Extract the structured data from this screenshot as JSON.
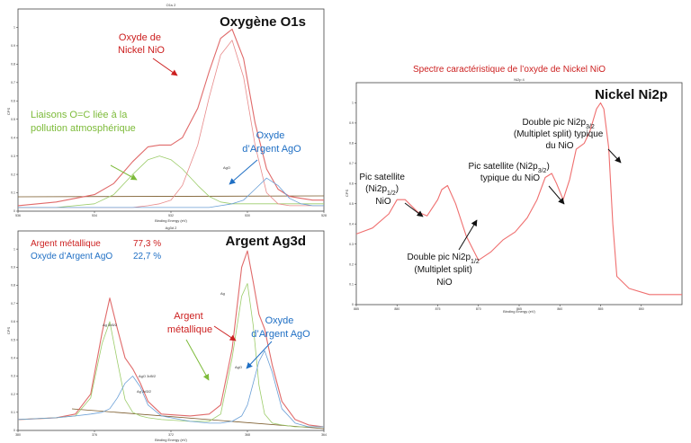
{
  "figure_subtitle": "Spectre caractéristique de l’oxyde de Nickel NiO",
  "colors": {
    "red": "#cc1f1f",
    "green": "#7dbb3a",
    "blue": "#1f6fc4",
    "dark": "#111111",
    "envelope": "#e06a6a"
  },
  "chart_data": [
    {
      "type": "line",
      "title": "Oxygène O1s",
      "small_title": "O1s 2",
      "xlabel": "Binding Energy (eV)",
      "ylabel": "CPS",
      "x_reversed": true,
      "xlim": [
        536,
        528
      ],
      "ylim": [
        0,
        1.1
      ],
      "x_ticks": [
        "536",
        "534",
        "532",
        "530",
        "528"
      ],
      "y_ticks": [
        "0",
        "0.1",
        "0.2",
        "0.3",
        "0.4",
        "0.5",
        "0.6",
        "0.7",
        "0.8",
        "0.9",
        "1"
      ],
      "series": [
        {
          "x": [
            536,
            535,
            534,
            533.5,
            533,
            532.6,
            532.3,
            532,
            531.7,
            531.3,
            531,
            530.7,
            530.4,
            530.1,
            529.8,
            529.5,
            529.2,
            528.9,
            528.6,
            528.3,
            528
          ],
          "values": [
            0.03,
            0.05,
            0.09,
            0.15,
            0.27,
            0.35,
            0.36,
            0.36,
            0.4,
            0.56,
            0.76,
            0.94,
            0.99,
            0.83,
            0.48,
            0.23,
            0.12,
            0.08,
            0.07,
            0.06,
            0.06
          ]
        },
        {
          "x": [
            536,
            535,
            534,
            533.5,
            533,
            532.6,
            532.3,
            532,
            531.7,
            531.3,
            531,
            530.7,
            530.4,
            530.1,
            529.8,
            529.5,
            529.2,
            528.9,
            528.6,
            528.3,
            528
          ],
          "values": [
            0.02,
            0.02,
            0.04,
            0.09,
            0.2,
            0.28,
            0.3,
            0.28,
            0.23,
            0.14,
            0.08,
            0.05,
            0.04,
            0.04,
            0.04,
            0.04,
            0.04,
            0.04,
            0.04,
            0.04,
            0.04
          ]
        },
        {
          "x": [
            536,
            535,
            534,
            533.5,
            533,
            532.6,
            532.3,
            532,
            531.7,
            531.3,
            531,
            530.7,
            530.4,
            530.1,
            529.8,
            529.5,
            529.2,
            528.9,
            528.6,
            528.3,
            528
          ],
          "values": [
            0.02,
            0.02,
            0.02,
            0.02,
            0.02,
            0.03,
            0.04,
            0.06,
            0.14,
            0.36,
            0.62,
            0.85,
            0.93,
            0.73,
            0.36,
            0.1,
            0.04,
            0.03,
            0.03,
            0.03,
            0.03
          ]
        },
        {
          "x": [
            536,
            535,
            534,
            533.5,
            533,
            532.6,
            532.3,
            532,
            531.7,
            531.3,
            531,
            530.7,
            530.4,
            530.1,
            529.8,
            529.5,
            529.2,
            528.9,
            528.6,
            528.3,
            528
          ],
          "values": [
            0.02,
            0.02,
            0.02,
            0.02,
            0.02,
            0.02,
            0.02,
            0.02,
            0.02,
            0.02,
            0.02,
            0.03,
            0.04,
            0.06,
            0.12,
            0.18,
            0.14,
            0.07,
            0.04,
            0.03,
            0.03
          ]
        }
      ],
      "peak_labels": [
        "AgO"
      ],
      "annotations": [
        {
          "text": [
            "Oxyde de",
            "Nickel NiO"
          ],
          "color": "red"
        },
        {
          "text": [
            "Liaisons O=C liée à la",
            "pollution atmosphérique"
          ],
          "color": "green"
        },
        {
          "text": [
            "Oxyde",
            "d’Argent AgO"
          ],
          "color": "blue"
        }
      ]
    },
    {
      "type": "line",
      "title": "Argent Ag3d",
      "small_title": "Ag3d 2",
      "xlabel": "Binding Energy (eV)",
      "ylabel": "CPS",
      "x_reversed": true,
      "xlim": [
        380,
        364
      ],
      "ylim": [
        0,
        1.1
      ],
      "x_ticks": [
        "380",
        "376",
        "372",
        "368",
        "364"
      ],
      "y_ticks": [
        "0",
        "0.1",
        "0.2",
        "0.3",
        "0.4",
        "0.5",
        "0.6",
        "0.7",
        "0.8",
        "0.9",
        "1"
      ],
      "legend": [
        {
          "label": "Argent métallique",
          "value": "77,3 %",
          "color": "red"
        },
        {
          "label": "Oxyde d’Argent AgO",
          "value": "22,7 %",
          "color": "blue"
        }
      ],
      "series": [
        {
          "x": [
            380,
            378,
            377,
            376.2,
            375.6,
            375.2,
            374.8,
            374.4,
            374,
            373.6,
            373.2,
            372.5,
            371,
            370,
            369.4,
            368.8,
            368.3,
            368,
            367.7,
            367.4,
            367.1,
            366.7,
            366.2,
            365.5,
            364.8,
            364
          ],
          "values": [
            0.06,
            0.07,
            0.09,
            0.2,
            0.54,
            0.73,
            0.56,
            0.4,
            0.34,
            0.26,
            0.16,
            0.09,
            0.08,
            0.09,
            0.14,
            0.45,
            0.9,
            0.99,
            0.82,
            0.64,
            0.56,
            0.36,
            0.16,
            0.06,
            0.03,
            0.02
          ]
        },
        {
          "x": [
            380,
            378,
            377,
            376.2,
            375.6,
            375.2,
            374.8,
            374.4,
            374,
            373.6,
            373.2,
            372.5,
            371,
            370,
            369.4,
            368.8,
            368.3,
            368,
            367.7,
            367.4,
            367.1,
            366.7,
            366.2,
            365.5,
            364.8,
            364
          ],
          "values": [
            0.06,
            0.07,
            0.08,
            0.18,
            0.48,
            0.6,
            0.38,
            0.17,
            0.1,
            0.08,
            0.07,
            0.06,
            0.05,
            0.05,
            0.09,
            0.4,
            0.74,
            0.81,
            0.58,
            0.25,
            0.09,
            0.04,
            0.03,
            0.02,
            0.02,
            0.02
          ]
        },
        {
          "x": [
            380,
            378,
            377,
            376.2,
            375.6,
            375.2,
            374.8,
            374.4,
            374,
            373.6,
            373.2,
            372.5,
            371,
            370,
            369.4,
            368.8,
            368.3,
            368,
            367.7,
            367.4,
            367.1,
            366.7,
            366.2,
            365.5,
            364.8,
            364
          ],
          "values": [
            0.06,
            0.07,
            0.08,
            0.09,
            0.1,
            0.12,
            0.18,
            0.26,
            0.3,
            0.24,
            0.14,
            0.08,
            0.05,
            0.04,
            0.04,
            0.05,
            0.08,
            0.14,
            0.26,
            0.38,
            0.44,
            0.32,
            0.12,
            0.04,
            0.02,
            0.02
          ]
        }
      ],
      "peak_labels": [
        "Ag 3d5/2",
        "AgO 3d5/2",
        "Ag 3d3/2",
        "Ag",
        "AgO"
      ],
      "annotations": [
        {
          "text": [
            "Argent",
            "métallique"
          ],
          "color": "red"
        },
        {
          "text": [
            "Oxyde",
            "d’Argent AgO"
          ],
          "color": "blue"
        }
      ]
    },
    {
      "type": "line",
      "title": "Nickel Ni2p",
      "small_title": "Ni2p 4",
      "xlabel": "Binding Energy (eV)",
      "ylabel": "CPS",
      "x_reversed": true,
      "xlim": [
        885,
        845
      ],
      "ylim": [
        0,
        1.1
      ],
      "x_ticks": [
        "885",
        "880",
        "875",
        "870",
        "865",
        "860",
        "855",
        "850"
      ],
      "y_ticks": [
        "0",
        "0.1",
        "0.2",
        "0.3",
        "0.4",
        "0.5",
        "0.6",
        "0.7",
        "0.8",
        "0.9",
        "1"
      ],
      "series": [
        {
          "x": [
            885,
            883,
            881,
            880,
            879,
            877.5,
            876.3,
            875,
            874.5,
            873.8,
            872.8,
            871.5,
            870,
            868.5,
            867,
            865.5,
            864,
            862.8,
            861.8,
            861,
            860.4,
            859.6,
            858.8,
            858,
            857,
            856.3,
            855.5,
            855,
            854.6,
            854,
            853.5,
            853,
            851.5,
            849,
            847,
            845
          ],
          "values": [
            0.35,
            0.38,
            0.45,
            0.52,
            0.52,
            0.46,
            0.44,
            0.52,
            0.57,
            0.59,
            0.5,
            0.34,
            0.22,
            0.26,
            0.32,
            0.36,
            0.43,
            0.52,
            0.63,
            0.65,
            0.6,
            0.52,
            0.62,
            0.77,
            0.8,
            0.86,
            0.97,
            1.0,
            0.97,
            0.78,
            0.4,
            0.14,
            0.08,
            0.05,
            0.05,
            0.05
          ]
        }
      ],
      "annotations": [
        {
          "text": [
            "Double pic Ni2p3/2",
            "(Multiplet split) typique",
            "du NiO"
          ]
        },
        {
          "text": [
            "Pic satellite (Ni2p3/2)",
            "typique du NiO"
          ]
        },
        {
          "text": [
            "Pic satellite",
            "(Ni2p1/2)",
            "NiO"
          ]
        },
        {
          "text": [
            "Double pic Ni2p1/2",
            "(Multiplet split)",
            "NiO"
          ]
        }
      ]
    }
  ]
}
